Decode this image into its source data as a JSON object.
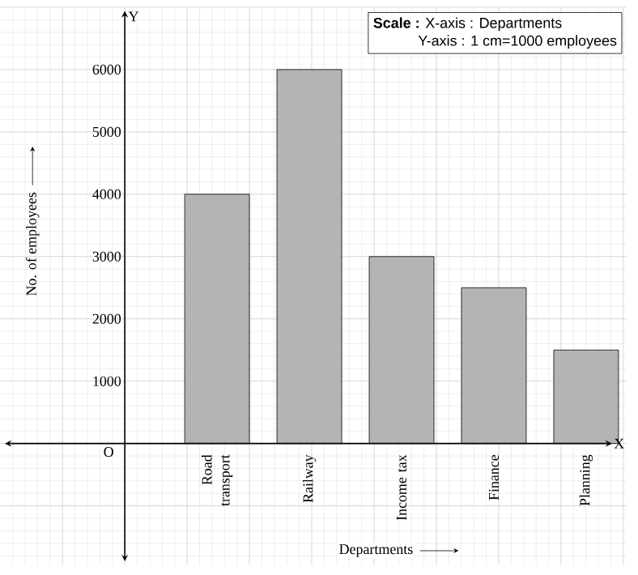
{
  "chart_data": {
    "type": "bar",
    "xlabel": "Departments",
    "ylabel": "No. of employees",
    "categories": [
      "Road transport",
      "Railway",
      "Income tax",
      "Finance",
      "Planning"
    ],
    "values": [
      4000,
      6000,
      3000,
      2500,
      1500
    ],
    "color": "#b4b4b4",
    "ylim": [
      -1950,
      7000
    ],
    "yticks": [
      1000,
      2000,
      3000,
      4000,
      5000,
      6000
    ],
    "grid": true,
    "annotations": [
      "**Scale :** X-axis : Departments",
      "Y-axis : 1 cm=1000 employees",
      "O",
      "X",
      "Y"
    ]
  }
}
